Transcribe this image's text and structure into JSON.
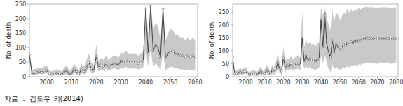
{
  "chart_data": [
    {
      "type": "line",
      "ylabel": "No. of death",
      "grid": false,
      "xlim": [
        1993,
        2061
      ],
      "ylim": [
        0,
        250
      ],
      "xticks": [
        2000,
        2010,
        2020,
        2030,
        2040,
        2050,
        2060
      ],
      "yticks": [
        0,
        50,
        100,
        150,
        200,
        250
      ],
      "x": [
        1993,
        1994,
        1995,
        1996,
        1997,
        1998,
        1999,
        2000,
        2001,
        2002,
        2003,
        2004,
        2005,
        2006,
        2007,
        2008,
        2009,
        2010,
        2011,
        2012,
        2013,
        2014,
        2015,
        2016,
        2017,
        2018,
        2019,
        2020,
        2021,
        2022,
        2023,
        2024,
        2025,
        2026,
        2027,
        2028,
        2029,
        2030,
        2031,
        2032,
        2033,
        2034,
        2035,
        2036,
        2037,
        2038,
        2039,
        2040,
        2041,
        2042,
        2043,
        2044,
        2045,
        2046,
        2047,
        2048,
        2049,
        2050,
        2051,
        2052,
        2053,
        2054,
        2055,
        2056,
        2057,
        2058,
        2059,
        2060
      ],
      "series": [
        {
          "color": "#333333",
          "marker": "circle",
          "values": [
            75,
            12,
            12,
            15,
            18,
            15,
            20,
            22,
            10,
            8,
            10,
            12,
            10,
            8,
            15,
            22,
            10,
            12,
            25,
            18,
            10,
            25,
            18,
            30,
            50,
            28,
            22,
            70,
            32,
            40,
            35,
            45,
            35,
            40,
            45,
            45,
            40,
            55,
            50,
            58,
            50,
            50,
            50,
            50,
            45,
            50,
            55,
            235,
            80,
            245,
            90,
            110,
            100,
            65,
            235,
            65,
            80,
            90,
            88,
            78,
            78,
            72,
            72,
            68,
            72,
            68,
            72,
            68
          ],
          "ci_low": [
            55,
            5,
            5,
            8,
            10,
            8,
            10,
            12,
            4,
            3,
            4,
            5,
            4,
            3,
            6,
            10,
            3,
            5,
            12,
            8,
            3,
            12,
            8,
            14,
            30,
            14,
            10,
            45,
            18,
            25,
            20,
            28,
            20,
            25,
            28,
            28,
            22,
            32,
            28,
            35,
            28,
            28,
            28,
            28,
            25,
            28,
            32,
            90,
            35,
            95,
            35,
            45,
            38,
            22,
            90,
            22,
            30,
            35,
            33,
            28,
            28,
            25,
            25,
            22,
            25,
            22,
            25,
            22
          ],
          "ci_high": [
            95,
            25,
            25,
            28,
            32,
            28,
            35,
            38,
            22,
            18,
            22,
            25,
            22,
            18,
            30,
            40,
            22,
            25,
            45,
            35,
            22,
            45,
            35,
            55,
            80,
            50,
            40,
            110,
            55,
            65,
            58,
            72,
            58,
            65,
            72,
            72,
            65,
            85,
            80,
            90,
            80,
            80,
            80,
            80,
            72,
            80,
            88,
            250,
            145,
            250,
            165,
            185,
            175,
            125,
            250,
            125,
            150,
            165,
            160,
            145,
            145,
            135,
            135,
            125,
            135,
            125,
            135,
            125
          ]
        }
      ]
    },
    {
      "type": "line",
      "ylabel": "No. of death",
      "grid": false,
      "xlim": [
        1993,
        2081
      ],
      "ylim": [
        0,
        280
      ],
      "xticks": [
        2000,
        2010,
        2020,
        2030,
        2040,
        2050,
        2060,
        2070,
        2080
      ],
      "yticks": [
        0,
        50,
        100,
        150,
        200,
        250
      ],
      "x": [
        1993,
        1994,
        1995,
        1996,
        1997,
        1998,
        1999,
        2000,
        2001,
        2002,
        2003,
        2004,
        2005,
        2006,
        2007,
        2008,
        2009,
        2010,
        2011,
        2012,
        2013,
        2014,
        2015,
        2016,
        2017,
        2018,
        2019,
        2020,
        2021,
        2022,
        2023,
        2024,
        2025,
        2026,
        2027,
        2028,
        2029,
        2030,
        2031,
        2032,
        2033,
        2034,
        2035,
        2036,
        2037,
        2038,
        2039,
        2040,
        2041,
        2042,
        2043,
        2044,
        2045,
        2046,
        2047,
        2048,
        2049,
        2050,
        2051,
        2052,
        2053,
        2054,
        2055,
        2056,
        2057,
        2058,
        2059,
        2060,
        2061,
        2062,
        2063,
        2064,
        2065,
        2066,
        2067,
        2068,
        2069,
        2070,
        2071,
        2072,
        2073,
        2074,
        2075,
        2076,
        2077,
        2078,
        2079,
        2080
      ],
      "series": [
        {
          "color": "#333333",
          "marker": "circle",
          "values": [
            75,
            12,
            12,
            15,
            18,
            15,
            20,
            22,
            10,
            8,
            10,
            12,
            10,
            8,
            15,
            22,
            10,
            12,
            25,
            18,
            10,
            25,
            18,
            30,
            55,
            28,
            22,
            72,
            35,
            45,
            40,
            50,
            40,
            45,
            50,
            50,
            45,
            150,
            60,
            80,
            65,
            70,
            65,
            65,
            60,
            65,
            70,
            220,
            115,
            245,
            130,
            95,
            75,
            140,
            95,
            125,
            115,
            105,
            110,
            125,
            120,
            130,
            125,
            135,
            130,
            140,
            135,
            140,
            140,
            145,
            145,
            150,
            148,
            148,
            148,
            148,
            145,
            145,
            148,
            148,
            148,
            148,
            148,
            148,
            145,
            145,
            148,
            148
          ],
          "ci_low": [
            55,
            5,
            5,
            8,
            10,
            8,
            10,
            12,
            4,
            3,
            4,
            5,
            4,
            3,
            6,
            10,
            3,
            5,
            12,
            8,
            3,
            12,
            8,
            14,
            32,
            14,
            10,
            48,
            18,
            28,
            22,
            30,
            22,
            28,
            30,
            30,
            25,
            80,
            28,
            42,
            32,
            38,
            30,
            30,
            25,
            30,
            35,
            80,
            50,
            90,
            55,
            30,
            18,
            50,
            28,
            38,
            32,
            25,
            30,
            38,
            32,
            42,
            35,
            45,
            38,
            48,
            42,
            48,
            45,
            50,
            50,
            55,
            52,
            52,
            52,
            52,
            50,
            50,
            52,
            52,
            52,
            52,
            52,
            52,
            50,
            50,
            52,
            52
          ],
          "ci_high": [
            95,
            25,
            25,
            28,
            32,
            28,
            35,
            38,
            22,
            18,
            22,
            25,
            22,
            18,
            30,
            40,
            22,
            25,
            45,
            35,
            22,
            45,
            35,
            55,
            90,
            50,
            40,
            115,
            60,
            72,
            65,
            80,
            65,
            72,
            80,
            80,
            72,
            250,
            115,
            145,
            125,
            135,
            125,
            128,
            118,
            128,
            135,
            270,
            235,
            270,
            235,
            200,
            180,
            260,
            210,
            250,
            240,
            220,
            230,
            248,
            242,
            262,
            248,
            262,
            248,
            262,
            255,
            265,
            260,
            265,
            268,
            270,
            268,
            268,
            268,
            268,
            265,
            265,
            268,
            268,
            268,
            268,
            268,
            268,
            265,
            265,
            268,
            268
          ]
        }
      ]
    }
  ],
  "caption": "자료 ： 김도우 외(2014)"
}
